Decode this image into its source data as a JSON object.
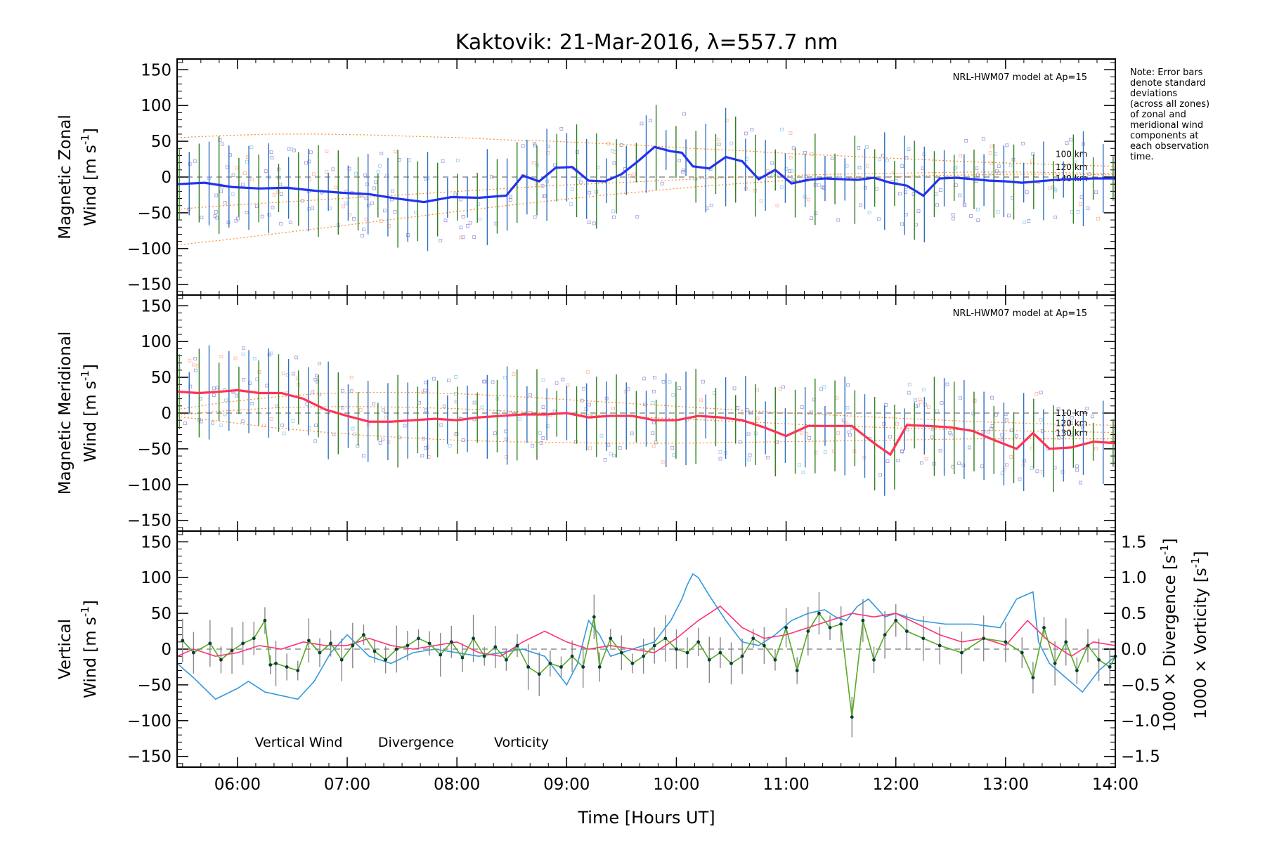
{
  "title": "Kaktovik: 21-Mar-2016, λ=557.7 nm",
  "note_lines": [
    "Note: Error bars",
    "denote standard",
    "deviations",
    "(across all zones)",
    "of zonal and",
    "meridional wind",
    "components at",
    "each observation",
    "time."
  ],
  "xlabel": "Time [Hours UT]",
  "colors": {
    "zonal": "#2233ee",
    "meridional": "#ff3355",
    "vertical": "#55aa22",
    "divergence": "#3399dd",
    "vorticity": "#ff3377",
    "model": "#ff8822",
    "scatter": "#9999dd",
    "errbar_green": "#2e7d1e",
    "errbar_blue": "#2f6fc0"
  },
  "chart_data": [
    {
      "type": "line",
      "panel": "zonal",
      "ylabel_line1": "Magnetic Zonal",
      "ylabel_line2": "Wind [m s",
      "ylabel_sup": "-1",
      "ylabel_close": "]",
      "model_label": "NRL-HWM07 model at Ap=15",
      "model_heights": [
        "100 km",
        "120 km",
        "140 km"
      ],
      "xlim": [
        5.45,
        14.0
      ],
      "ylim": [
        -165,
        165
      ],
      "xticks": [
        "06:00",
        "07:00",
        "08:00",
        "09:00",
        "10:00",
        "11:00",
        "12:00",
        "13:00",
        "14:00"
      ],
      "yticks": [
        -150,
        -100,
        -50,
        0,
        50,
        100,
        150
      ],
      "x": [
        5.45,
        5.7,
        5.95,
        6.2,
        6.45,
        6.7,
        6.95,
        7.2,
        7.45,
        7.7,
        7.95,
        8.2,
        8.45,
        8.6,
        8.75,
        8.9,
        9.05,
        9.2,
        9.35,
        9.5,
        9.65,
        9.8,
        9.95,
        10.05,
        10.15,
        10.3,
        10.45,
        10.6,
        10.75,
        10.9,
        11.05,
        11.2,
        11.35,
        11.5,
        11.65,
        11.8,
        11.95,
        12.1,
        12.25,
        12.4,
        12.55,
        12.7,
        12.85,
        13.0,
        13.15,
        13.3,
        13.45,
        13.6,
        13.8,
        14.0
      ],
      "values": [
        -10,
        -8,
        -14,
        -16,
        -15,
        -19,
        -22,
        -24,
        -30,
        -35,
        -28,
        -29,
        -26,
        2,
        -6,
        13,
        14,
        -5,
        -6,
        4,
        22,
        42,
        36,
        34,
        15,
        12,
        28,
        22,
        -3,
        10,
        -9,
        -4,
        -2,
        -3,
        -4,
        -1,
        -8,
        -12,
        -26,
        -2,
        -1,
        -3,
        -5,
        -6,
        -8,
        -6,
        -4,
        -3,
        -2,
        -2
      ],
      "model_100km": [
        55,
        58,
        60,
        60,
        59,
        57,
        55,
        52,
        50,
        47,
        44,
        40,
        37,
        33,
        30,
        27,
        24,
        21,
        19,
        17,
        15
      ],
      "model_120km": [
        -45,
        -40,
        -36,
        -32,
        -28,
        -24,
        -20,
        -16,
        -12,
        -9,
        -6,
        -3,
        0,
        2,
        4,
        5,
        6,
        7,
        7,
        6,
        5
      ],
      "model_140km": [
        -95,
        -88,
        -80,
        -72,
        -64,
        -56,
        -48,
        -40,
        -33,
        -26,
        -20,
        -14,
        -9,
        -5,
        -2,
        0,
        2,
        3,
        4,
        4,
        3
      ]
    },
    {
      "type": "line",
      "panel": "meridional",
      "ylabel_line1": "Magnetic Meridional",
      "ylabel_line2": "Wind [m s",
      "ylabel_sup": "-1",
      "ylabel_close": "]",
      "model_label": "NRL-HWM07 model at Ap=15",
      "model_heights": [
        "110 km",
        "120 km",
        "130 km"
      ],
      "xlim": [
        5.45,
        14.0
      ],
      "ylim": [
        -165,
        165
      ],
      "yticks": [
        -150,
        -100,
        -50,
        0,
        50,
        100,
        150
      ],
      "x": [
        5.45,
        5.65,
        5.85,
        6.0,
        6.2,
        6.4,
        6.6,
        6.8,
        7.0,
        7.2,
        7.4,
        7.6,
        7.8,
        8.0,
        8.2,
        8.4,
        8.6,
        8.8,
        9.0,
        9.2,
        9.4,
        9.6,
        9.8,
        10.0,
        10.2,
        10.4,
        10.6,
        10.8,
        11.0,
        11.2,
        11.4,
        11.6,
        11.8,
        11.95,
        12.1,
        12.3,
        12.5,
        12.7,
        12.9,
        13.1,
        13.25,
        13.4,
        13.6,
        13.8,
        14.0
      ],
      "values": [
        30,
        28,
        30,
        32,
        28,
        28,
        20,
        5,
        -4,
        -12,
        -12,
        -10,
        -8,
        -10,
        -6,
        -4,
        -2,
        -2,
        0,
        -6,
        -4,
        -4,
        -10,
        -10,
        -4,
        -6,
        -10,
        -20,
        -32,
        -18,
        -18,
        -18,
        -42,
        -58,
        -17,
        -18,
        -20,
        -25,
        -38,
        -50,
        -28,
        -50,
        -48,
        -40,
        -42
      ],
      "model_110km": [
        5,
        15,
        22,
        27,
        29,
        29,
        27,
        24,
        20,
        16,
        12,
        8,
        4,
        0,
        -3,
        -6,
        -9,
        -12,
        -14,
        -16,
        -17
      ],
      "model_120km": [
        -3,
        3,
        7,
        9,
        9,
        8,
        6,
        3,
        0,
        -3,
        -6,
        -9,
        -12,
        -15,
        -18,
        -20,
        -22,
        -24,
        -25,
        -26,
        -27
      ],
      "model_130km": [
        -5,
        -12,
        -20,
        -26,
        -31,
        -35,
        -38,
        -40,
        -41,
        -42,
        -42,
        -42,
        -41,
        -40,
        -39,
        -38,
        -37,
        -36,
        -36,
        -36,
        -36
      ]
    },
    {
      "type": "line",
      "panel": "vertical",
      "ylabel_line1": "Vertical",
      "ylabel_line2": "Wind [m s",
      "ylabel_sup": "-1",
      "ylabel_close": "]",
      "right_label_div": "1000 × Divergence [s",
      "right_label_vort": "1000 × Vorticity [s",
      "right_sup": "-1",
      "right_close": "]",
      "xlim": [
        5.45,
        14.0
      ],
      "ylim": [
        -165,
        165
      ],
      "y2lim": [
        -1.65,
        1.65
      ],
      "yticks": [
        -150,
        -100,
        -50,
        0,
        50,
        100,
        150
      ],
      "y2ticks": [
        "-1.5",
        "-1.0",
        "-0.5",
        "0.0",
        "0.5",
        "1.0",
        "1.5"
      ],
      "legend": [
        "Vertical Wind",
        "Divergence",
        "Vorticity"
      ],
      "series_vertical": {
        "x": [
          5.5,
          5.6,
          5.75,
          5.85,
          5.95,
          6.05,
          6.15,
          6.25,
          6.3,
          6.35,
          6.45,
          6.55,
          6.65,
          6.75,
          6.85,
          6.95,
          7.05,
          7.15,
          7.25,
          7.35,
          7.45,
          7.55,
          7.65,
          7.75,
          7.85,
          7.95,
          8.05,
          8.15,
          8.25,
          8.35,
          8.45,
          8.55,
          8.65,
          8.75,
          8.85,
          8.95,
          9.05,
          9.15,
          9.25,
          9.3,
          9.4,
          9.5,
          9.6,
          9.7,
          9.8,
          9.9,
          10.0,
          10.1,
          10.2,
          10.3,
          10.4,
          10.5,
          10.6,
          10.7,
          10.8,
          10.9,
          11.0,
          11.1,
          11.2,
          11.3,
          11.4,
          11.5,
          11.6,
          11.7,
          11.8,
          11.9,
          12.0,
          12.1,
          12.25,
          12.4,
          12.6,
          12.8,
          13.0,
          13.15,
          13.25,
          13.35,
          13.45,
          13.55,
          13.65,
          13.75,
          13.85,
          13.95,
          14.0
        ],
        "values": [
          12,
          -5,
          8,
          -15,
          -2,
          8,
          15,
          40,
          -22,
          -20,
          -25,
          -30,
          12,
          -5,
          8,
          -15,
          5,
          20,
          -3,
          -15,
          0,
          5,
          15,
          8,
          -8,
          10,
          -12,
          15,
          -10,
          3,
          -15,
          5,
          -25,
          -35,
          -20,
          -25,
          -10,
          -25,
          45,
          -25,
          15,
          -5,
          -20,
          -10,
          5,
          15,
          0,
          -5,
          10,
          -15,
          -5,
          -20,
          -10,
          15,
          5,
          -15,
          30,
          -30,
          25,
          50,
          30,
          35,
          -95,
          40,
          -15,
          20,
          40,
          25,
          15,
          5,
          -5,
          15,
          10,
          -5,
          -40,
          30,
          -20,
          10,
          -30,
          5,
          -15,
          -25,
          -10
        ]
      },
      "series_divergence": {
        "x": [
          5.45,
          5.6,
          5.8,
          6.0,
          6.1,
          6.25,
          6.4,
          6.55,
          6.7,
          6.85,
          7.0,
          7.2,
          7.4,
          7.6,
          7.8,
          8.0,
          8.2,
          8.4,
          8.6,
          8.8,
          9.0,
          9.1,
          9.2,
          9.3,
          9.4,
          9.6,
          9.8,
          9.95,
          10.05,
          10.1,
          10.15,
          10.2,
          10.3,
          10.45,
          10.6,
          10.75,
          10.9,
          11.05,
          11.2,
          11.35,
          11.45,
          11.55,
          11.65,
          11.75,
          11.9,
          12.0,
          12.2,
          12.45,
          12.7,
          12.95,
          13.1,
          13.25,
          13.3,
          13.4,
          13.55,
          13.7,
          13.85,
          14.0
        ],
        "values": [
          -0.2,
          -0.4,
          -0.7,
          -0.55,
          -0.45,
          -0.6,
          -0.65,
          -0.7,
          -0.45,
          -0.05,
          0.2,
          -0.1,
          -0.2,
          -0.05,
          0.0,
          -0.05,
          -0.1,
          -0.05,
          0.0,
          -0.1,
          -0.5,
          -0.2,
          0.4,
          0.2,
          -0.1,
          0.0,
          0.1,
          0.4,
          0.7,
          0.9,
          1.05,
          1.0,
          0.75,
          0.4,
          0.1,
          0.05,
          0.2,
          0.4,
          0.5,
          0.55,
          0.45,
          0.4,
          0.6,
          0.7,
          0.45,
          0.5,
          0.4,
          0.35,
          0.35,
          0.3,
          0.7,
          0.8,
          0.1,
          -0.2,
          -0.4,
          -0.6,
          -0.3,
          -0.1
        ]
      },
      "series_vorticity": {
        "x": [
          5.45,
          5.6,
          5.8,
          6.0,
          6.2,
          6.4,
          6.6,
          6.8,
          7.0,
          7.2,
          7.4,
          7.6,
          7.8,
          8.0,
          8.2,
          8.4,
          8.6,
          8.8,
          9.0,
          9.2,
          9.4,
          9.6,
          9.8,
          10.0,
          10.2,
          10.4,
          10.6,
          10.8,
          11.0,
          11.2,
          11.4,
          11.6,
          11.8,
          12.0,
          12.2,
          12.4,
          12.6,
          12.8,
          13.0,
          13.2,
          13.4,
          13.6,
          13.8,
          14.0
        ],
        "values": [
          -0.1,
          0.0,
          -0.1,
          -0.05,
          0.05,
          0.0,
          0.1,
          0.05,
          0.05,
          0.15,
          0.05,
          0.0,
          0.05,
          0.1,
          -0.05,
          -0.1,
          0.1,
          0.25,
          0.1,
          0.0,
          0.05,
          0.0,
          -0.05,
          0.15,
          0.4,
          0.6,
          0.3,
          0.15,
          0.2,
          0.3,
          0.4,
          0.5,
          0.45,
          0.5,
          0.35,
          0.2,
          0.1,
          0.15,
          0.05,
          0.4,
          0.1,
          -0.1,
          0.1,
          0.05
        ]
      }
    }
  ]
}
